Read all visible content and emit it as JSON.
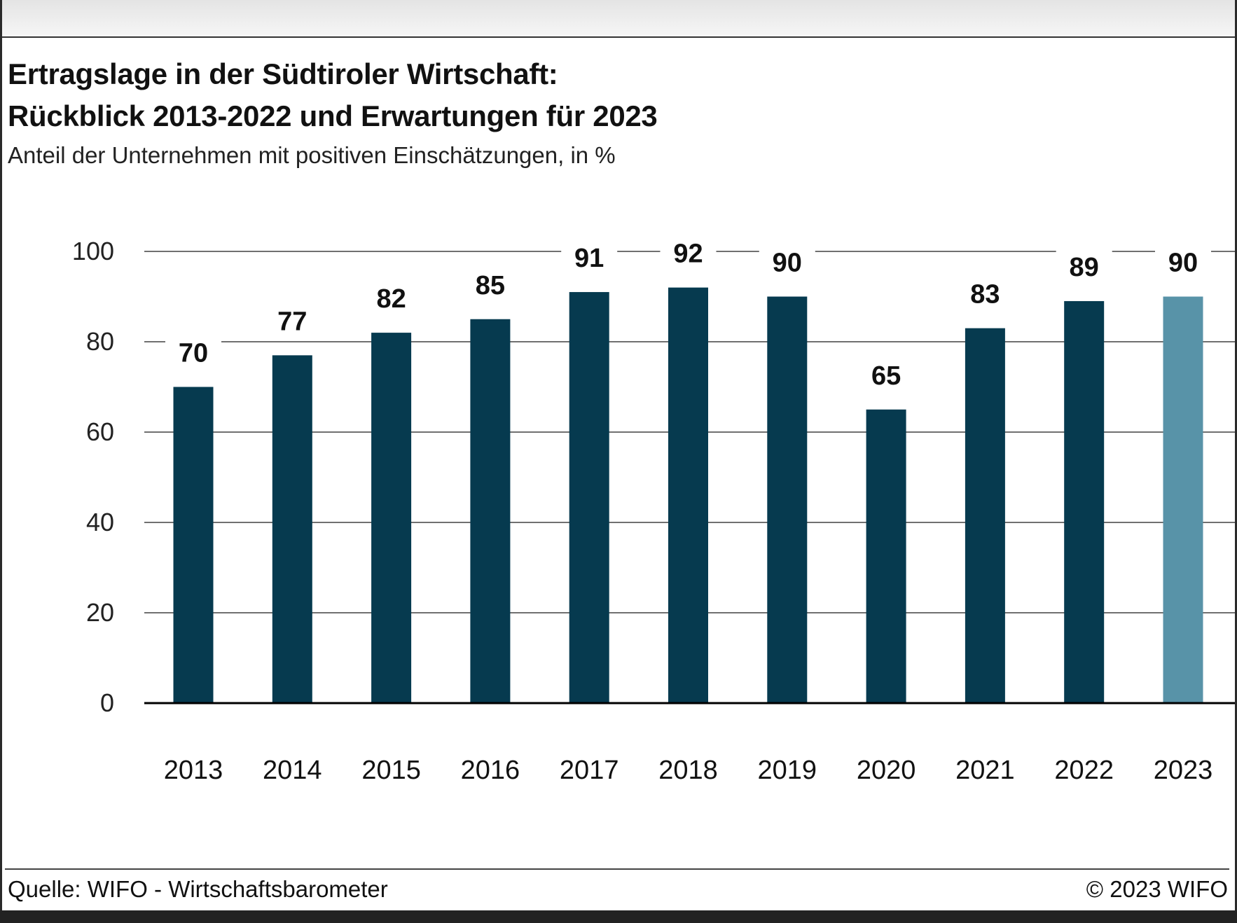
{
  "title_line1": "Ertragslage in der Südtiroler Wirtschaft:",
  "title_line2": "Rückblick 2013-2022 und Erwartungen für 2023",
  "subtitle": "Anteil der Unternehmen mit positiven Einschätzungen, in %",
  "source": "Quelle: WIFO - Wirtschaftsbarometer",
  "copyright": "© 2023 WIFO",
  "colors": {
    "bar": "#063a4f",
    "bar_forecast": "#5893a8",
    "grid": "#1a1a1a"
  },
  "chart_data": {
    "type": "bar",
    "categories": [
      "2013",
      "2014",
      "2015",
      "2016",
      "2017",
      "2018",
      "2019",
      "2020",
      "2021",
      "2022",
      "2023"
    ],
    "values": [
      70,
      77,
      82,
      85,
      91,
      92,
      90,
      65,
      83,
      89,
      90
    ],
    "forecast_categories": [
      "2023"
    ],
    "yticks": [
      "0",
      "20",
      "40",
      "60",
      "80",
      "100"
    ],
    "ylim": [
      0,
      100
    ],
    "grid": true,
    "legend": false,
    "data_labels": true
  }
}
